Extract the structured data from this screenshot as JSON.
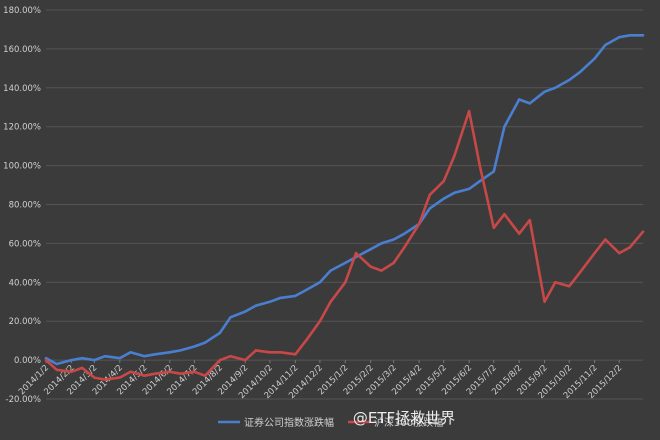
{
  "chart_data": {
    "type": "line",
    "title": "",
    "xlabel": "",
    "ylabel": "",
    "ylim": [
      -0.2,
      1.8
    ],
    "y_ticks": [
      "-20.00%",
      "0.00%",
      "20.00%",
      "40.00%",
      "60.00%",
      "80.00%",
      "100.00%",
      "120.00%",
      "140.00%",
      "160.00%",
      "180.00%"
    ],
    "x_tick_labels": [
      "2014/1/2",
      "2014/2/2",
      "2014/3/2",
      "2014/4/2",
      "2014/5/2",
      "2014/6/2",
      "2014/7/2",
      "2014/8/2",
      "2014/9/2",
      "2014/10/2",
      "2014/11/2",
      "2014/12/2",
      "2015/1/2",
      "2015/2/2",
      "2015/3/2",
      "2015/4/2",
      "2015/5/2",
      "2015/6/2",
      "2015/7/2",
      "2015/8/2",
      "2015/9/2",
      "2015/10/2",
      "2015/11/2",
      "2015/12/2"
    ],
    "grid": true,
    "legend_position": "bottom",
    "colors": {
      "background": "#3b3b3b",
      "grid": "#555555",
      "text": "#d0d0d0"
    },
    "series": [
      {
        "name": "证券公司指数涨跌幅",
        "color": "#4a7fd0",
        "x": [
          "2014/1/2",
          "2014/1/15",
          "2014/2/2",
          "2014/2/15",
          "2014/3/2",
          "2014/3/15",
          "2014/4/2",
          "2014/4/15",
          "2014/5/2",
          "2014/5/15",
          "2014/6/2",
          "2014/6/15",
          "2014/7/2",
          "2014/7/15",
          "2014/8/2",
          "2014/8/15",
          "2014/9/2",
          "2014/9/15",
          "2014/10/2",
          "2014/10/15",
          "2014/11/2",
          "2014/11/15",
          "2014/12/2",
          "2014/12/15",
          "2015/1/2",
          "2015/1/15",
          "2015/2/2",
          "2015/2/15",
          "2015/3/2",
          "2015/3/15",
          "2015/4/2",
          "2015/4/15",
          "2015/5/2",
          "2015/5/15",
          "2015/6/2",
          "2015/6/15",
          "2015/7/2",
          "2015/7/15",
          "2015/8/2",
          "2015/8/15",
          "2015/9/2",
          "2015/9/15",
          "2015/10/2",
          "2015/10/15",
          "2015/11/2",
          "2015/11/15",
          "2015/12/2",
          "2015/12/15",
          "2015/12/31"
        ],
        "values": [
          0.01,
          -0.02,
          0.0,
          0.01,
          0.0,
          0.02,
          0.01,
          0.04,
          0.02,
          0.03,
          0.04,
          0.05,
          0.07,
          0.09,
          0.14,
          0.22,
          0.25,
          0.28,
          0.3,
          0.32,
          0.33,
          0.36,
          0.4,
          0.46,
          0.5,
          0.53,
          0.57,
          0.6,
          0.62,
          0.65,
          0.7,
          0.78,
          0.83,
          0.86,
          0.88,
          0.92,
          0.97,
          1.2,
          1.34,
          1.32,
          1.38,
          1.4,
          1.44,
          1.48,
          1.55,
          1.62,
          1.66,
          1.67,
          1.67
        ]
      },
      {
        "name": "沪深300涨跌幅",
        "color": "#c84848",
        "x": [
          "2014/1/2",
          "2014/1/15",
          "2014/2/2",
          "2014/2/15",
          "2014/3/2",
          "2014/3/15",
          "2014/4/2",
          "2014/4/15",
          "2014/5/2",
          "2014/5/15",
          "2014/6/2",
          "2014/6/15",
          "2014/7/2",
          "2014/7/15",
          "2014/8/2",
          "2014/8/15",
          "2014/9/2",
          "2014/9/15",
          "2014/10/2",
          "2014/10/15",
          "2014/11/2",
          "2014/11/15",
          "2014/12/2",
          "2014/12/15",
          "2015/1/2",
          "2015/1/15",
          "2015/2/2",
          "2015/2/15",
          "2015/3/2",
          "2015/3/15",
          "2015/4/2",
          "2015/4/15",
          "2015/5/2",
          "2015/5/15",
          "2015/6/2",
          "2015/6/15",
          "2015/7/2",
          "2015/7/15",
          "2015/8/2",
          "2015/8/15",
          "2015/9/2",
          "2015/9/15",
          "2015/10/2",
          "2015/10/15",
          "2015/11/2",
          "2015/11/15",
          "2015/12/2",
          "2015/12/15",
          "2015/12/31"
        ],
        "values": [
          0.0,
          -0.05,
          -0.06,
          -0.04,
          -0.09,
          -0.1,
          -0.09,
          -0.06,
          -0.08,
          -0.07,
          -0.06,
          -0.07,
          -0.06,
          -0.08,
          0.0,
          0.02,
          0.0,
          0.05,
          0.04,
          0.04,
          0.03,
          0.1,
          0.2,
          0.3,
          0.4,
          0.55,
          0.48,
          0.46,
          0.5,
          0.58,
          0.7,
          0.85,
          0.92,
          1.05,
          1.28,
          1.0,
          0.68,
          0.75,
          0.65,
          0.72,
          0.3,
          0.4,
          0.38,
          0.45,
          0.55,
          0.62,
          0.55,
          0.58,
          0.66
        ]
      }
    ]
  },
  "watermark": "@ETF拯救世界"
}
